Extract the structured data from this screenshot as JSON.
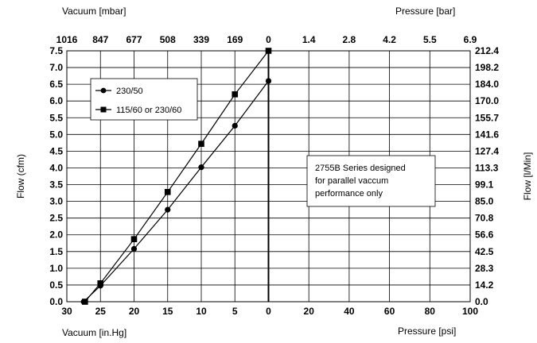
{
  "chart_data": {
    "type": "line",
    "axes": {
      "bottom_left": {
        "label": "Vacuum [in.Hg]",
        "ticks": [
          "30",
          "25",
          "20",
          "15",
          "10",
          "5",
          "0"
        ],
        "range": [
          30,
          0
        ]
      },
      "bottom_right": {
        "label": "Pressure [psi]",
        "ticks": [
          "20",
          "40",
          "60",
          "80",
          "100"
        ],
        "range": [
          0,
          100
        ]
      },
      "top_left": {
        "label": "Vacuum [mbar]",
        "ticks": [
          "1016",
          "847",
          "677",
          "508",
          "339",
          "169",
          "0"
        ]
      },
      "top_right": {
        "label": "Pressure [bar]",
        "ticks": [
          "1.4",
          "2.8",
          "4.2",
          "5.5",
          "6.9"
        ]
      },
      "left": {
        "label": "Flow (cfm)",
        "ticks": [
          "0.0",
          "0.5",
          "1.0",
          "1.5",
          "2.0",
          "2.5",
          "3.0",
          "3.5",
          "4.0",
          "4.5",
          "5.0",
          "5.5",
          "6.0",
          "6.5",
          "7.0",
          "7.5"
        ],
        "range": [
          0,
          7.5
        ]
      },
      "right": {
        "label": "Flow [l/Min]",
        "ticks": [
          "0.0",
          "14.2",
          "28.3",
          "42.5",
          "56.6",
          "70.8",
          "85.0",
          "99.1",
          "113.3",
          "127.4",
          "141.6",
          "155.7",
          "170.0",
          "184.0",
          "198.2",
          "212.4"
        ]
      }
    },
    "x_unit": "Vacuum [in.Hg]",
    "series": [
      {
        "name": "230/50",
        "marker": "circle",
        "points": [
          [
            27.5,
            0.0
          ],
          [
            25,
            0.48
          ],
          [
            20,
            1.58
          ],
          [
            15,
            2.75
          ],
          [
            10,
            4.02
          ],
          [
            5,
            5.26
          ],
          [
            0,
            6.6
          ]
        ]
      },
      {
        "name": "115/60 or 230/60",
        "marker": "square",
        "points": [
          [
            27.3,
            0.0
          ],
          [
            25,
            0.55
          ],
          [
            20,
            1.87
          ],
          [
            15,
            3.28
          ],
          [
            10,
            4.72
          ],
          [
            5,
            6.2
          ],
          [
            0,
            7.5
          ]
        ]
      }
    ],
    "annotation": "2755B Series designed for parallel vaccum performance only",
    "grid": true,
    "legend_position": "top-left"
  }
}
